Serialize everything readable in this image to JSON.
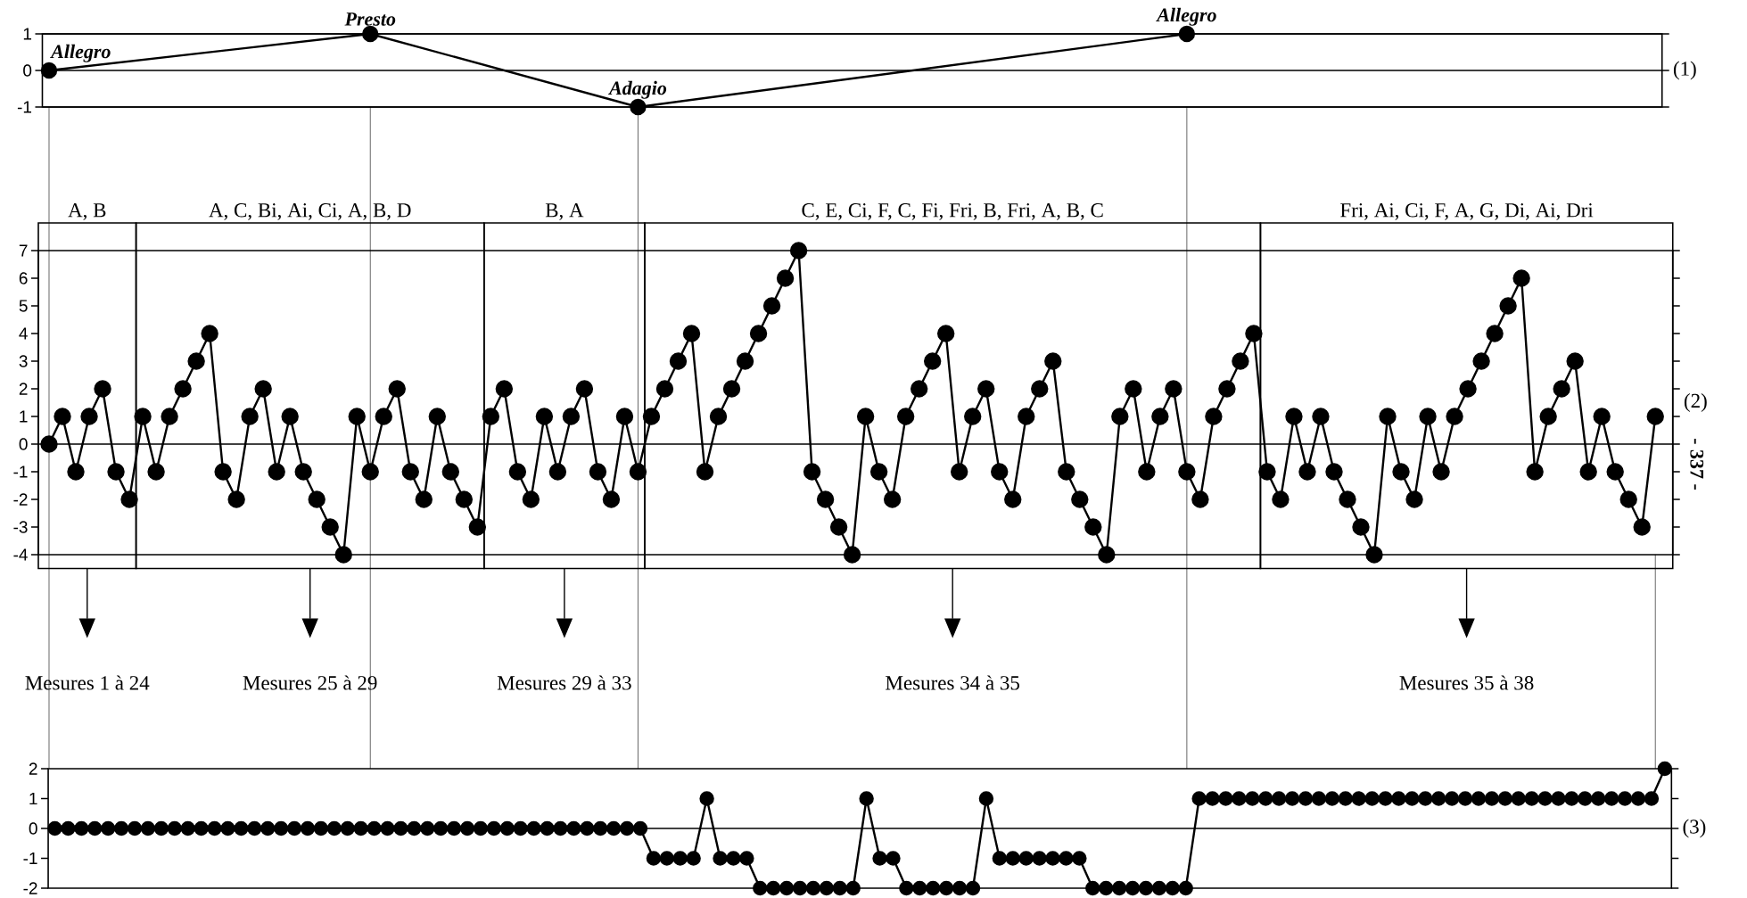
{
  "chart_data": [
    {
      "type": "line",
      "categories": [
        null,
        null,
        null,
        null,
        null,
        null,
        null,
        null,
        null,
        null,
        null,
        null,
        null,
        null,
        null,
        null,
        null,
        null,
        null,
        null,
        null,
        null,
        null,
        null,
        null,
        null,
        null,
        null,
        null,
        null,
        null,
        null,
        null,
        null,
        null,
        null,
        null,
        null,
        null,
        null,
        null,
        null,
        null,
        null,
        null,
        null,
        null,
        null,
        null,
        null,
        null,
        null,
        null,
        null,
        null,
        null,
        null,
        null,
        null,
        null,
        null,
        null,
        null,
        null,
        null,
        null,
        null,
        null,
        null,
        null,
        null,
        null,
        null,
        null,
        null,
        null,
        null,
        null,
        null,
        null,
        null,
        null,
        null,
        null,
        null,
        null,
        null,
        null,
        null,
        null,
        null,
        null,
        null,
        null,
        null,
        null,
        null,
        null,
        null,
        null,
        null,
        null,
        null,
        null,
        null,
        null,
        null,
        null,
        null,
        null,
        null,
        null,
        null,
        null,
        null,
        null,
        null,
        null,
        null,
        null,
        null
      ],
      "values": [
        0,
        null,
        null,
        null,
        null,
        null,
        null,
        null,
        null,
        null,
        null,
        null,
        null,
        null,
        null,
        null,
        null,
        null,
        null,
        null,
        null,
        null,
        null,
        null,
        1,
        null,
        null,
        null,
        null,
        null,
        null,
        null,
        null,
        null,
        null,
        null,
        null,
        null,
        null,
        null,
        null,
        null,
        null,
        null,
        -1,
        null,
        null,
        null,
        null,
        null,
        null,
        null,
        null,
        null,
        null,
        null,
        null,
        null,
        null,
        null,
        null,
        null,
        null,
        null,
        null,
        null,
        null,
        null,
        null,
        null,
        null,
        null,
        null,
        null,
        null,
        null,
        null,
        null,
        null,
        null,
        null,
        null,
        null,
        null,
        null,
        1,
        null,
        null,
        null,
        null,
        null,
        null,
        null,
        null,
        null,
        null,
        null,
        null,
        null,
        null,
        null,
        null,
        null,
        null,
        null,
        null,
        null,
        null,
        null,
        null,
        null,
        null,
        null,
        null,
        null,
        null,
        null,
        null,
        null,
        null,
        null
      ],
      "ylim": [
        -1,
        1
      ],
      "yticks": [
        -1,
        0,
        1
      ],
      "tick_labels": "y",
      "color": "#000000",
      "marker": "circle",
      "grid": "y",
      "annotations": [
        "Allegro",
        "Presto",
        "Adagio",
        "Allegro",
        "(1)"
      ]
    },
    {
      "type": "line",
      "categories": [
        null,
        null,
        null,
        null,
        null,
        null,
        null,
        null,
        null,
        null,
        null,
        null,
        null,
        null,
        null,
        null,
        null,
        null,
        null,
        null,
        null,
        null,
        null,
        null,
        null,
        null,
        null,
        null,
        null,
        null,
        null,
        null,
        null,
        null,
        null,
        null,
        null,
        null,
        null,
        null,
        null,
        null,
        null,
        null,
        null,
        null,
        null,
        null,
        null,
        null,
        null,
        null,
        null,
        null,
        null,
        null,
        null,
        null,
        null,
        null,
        null,
        null,
        null,
        null,
        null,
        null,
        null,
        null,
        null,
        null,
        null,
        null,
        null,
        null,
        null,
        null,
        null,
        null,
        null,
        null,
        null,
        null,
        null,
        null,
        null,
        null,
        null,
        null,
        null,
        null,
        null,
        null,
        null,
        null,
        null,
        null,
        null,
        null,
        null,
        null,
        null,
        null,
        null,
        null,
        null,
        null,
        null,
        null,
        null,
        null,
        null,
        null,
        null,
        null,
        null,
        null,
        null,
        null,
        null,
        null,
        null
      ],
      "values": [
        0,
        1,
        -1,
        1,
        2,
        -1,
        -2,
        1,
        -1,
        1,
        2,
        3,
        4,
        -1,
        -2,
        1,
        2,
        -1,
        1,
        -1,
        -2,
        -3,
        -4,
        1,
        -1,
        1,
        2,
        -1,
        -2,
        1,
        -1,
        -2,
        -3,
        1,
        2,
        -1,
        -2,
        1,
        -1,
        1,
        2,
        -1,
        -2,
        1,
        -1,
        1,
        2,
        3,
        4,
        -1,
        1,
        2,
        3,
        4,
        5,
        6,
        7,
        -1,
        -2,
        -3,
        -4,
        1,
        -1,
        -2,
        1,
        2,
        3,
        4,
        -1,
        1,
        2,
        -1,
        -2,
        1,
        2,
        3,
        -1,
        -2,
        -3,
        -4,
        1,
        2,
        -1,
        1,
        2,
        -1,
        -2,
        1,
        2,
        3,
        4,
        -1,
        -2,
        1,
        -1,
        1,
        -1,
        -2,
        -3,
        -4,
        1,
        -1,
        -2,
        1,
        -1,
        1,
        2,
        3,
        4,
        5,
        6,
        -1,
        1,
        2,
        3,
        -1,
        1,
        -1,
        -2,
        -3,
        1
      ],
      "ylim": [
        -4,
        7
      ],
      "yticks": [
        -4,
        -3,
        -2,
        -1,
        0,
        1,
        2,
        3,
        4,
        5,
        6,
        7
      ],
      "tick_labels": "y",
      "color": "#000000",
      "marker": "circle",
      "ref_lines": [
        {
          "axis": "y",
          "value": 0
        }
      ],
      "annotations": [
        "(2)",
        "- 337 -",
        "A, B",
        "A, C, Bi, Ai, Ci, A, B, D",
        "B, A",
        "C, E, Ci, F, C, Fi, Fri, B, Fri, A, B, C",
        "Fri, Ai, Ci, F, A, G, Di, Ai, Dri",
        "Mesures 1 à 24",
        "Mesures 25 à 29",
        "Mesures 29 à 33",
        "Mesures 34 à 35",
        "Mesures 35 à 38"
      ]
    },
    {
      "type": "line",
      "categories": [
        null,
        null,
        null,
        null,
        null,
        null,
        null,
        null,
        null,
        null,
        null,
        null,
        null,
        null,
        null,
        null,
        null,
        null,
        null,
        null,
        null,
        null,
        null,
        null,
        null,
        null,
        null,
        null,
        null,
        null,
        null,
        null,
        null,
        null,
        null,
        null,
        null,
        null,
        null,
        null,
        null,
        null,
        null,
        null,
        null,
        null,
        null,
        null,
        null,
        null,
        null,
        null,
        null,
        null,
        null,
        null,
        null,
        null,
        null,
        null,
        null,
        null,
        null,
        null,
        null,
        null,
        null,
        null,
        null,
        null,
        null,
        null,
        null,
        null,
        null,
        null,
        null,
        null,
        null,
        null,
        null,
        null,
        null,
        null,
        null,
        null,
        null,
        null,
        null,
        null,
        null,
        null,
        null,
        null,
        null,
        null,
        null,
        null,
        null,
        null,
        null,
        null,
        null,
        null,
        null,
        null,
        null,
        null,
        null,
        null,
        null,
        null,
        null,
        null,
        null,
        null,
        null,
        null,
        null,
        null,
        null,
        null
      ],
      "values": [
        0,
        0,
        0,
        0,
        0,
        0,
        0,
        0,
        0,
        0,
        0,
        0,
        0,
        0,
        0,
        0,
        0,
        0,
        0,
        0,
        0,
        0,
        0,
        0,
        0,
        0,
        0,
        0,
        0,
        0,
        0,
        0,
        0,
        0,
        0,
        0,
        0,
        0,
        0,
        0,
        0,
        0,
        0,
        0,
        0,
        -1,
        -1,
        -1,
        -1,
        1,
        -1,
        -1,
        -1,
        -2,
        -2,
        -2,
        -2,
        -2,
        -2,
        -2,
        -2,
        1,
        -1,
        -1,
        -2,
        -2,
        -2,
        -2,
        -2,
        -2,
        1,
        -1,
        -1,
        -1,
        -1,
        -1,
        -1,
        -1,
        -2,
        -2,
        -2,
        -2,
        -2,
        -2,
        -2,
        -2,
        1,
        1,
        1,
        1,
        1,
        1,
        1,
        1,
        1,
        1,
        1,
        1,
        1,
        1,
        1,
        1,
        1,
        1,
        1,
        1,
        1,
        1,
        1,
        1,
        1,
        1,
        1,
        1,
        1,
        1,
        1,
        1,
        1,
        1,
        1,
        2
      ],
      "ylim": [
        -2,
        2
      ],
      "yticks": [
        -2,
        -1,
        0,
        1,
        2
      ],
      "tick_labels": "y",
      "color": "#000000",
      "marker": "circle",
      "ref_lines": [
        {
          "axis": "y",
          "value": 0
        }
      ],
      "annotations": [
        "(3)"
      ]
    }
  ]
}
